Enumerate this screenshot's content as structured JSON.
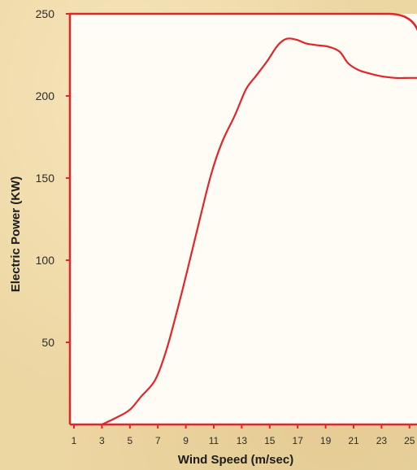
{
  "chart_data": {
    "type": "line",
    "title": "",
    "xlabel": "Wind Speed (m/sec)",
    "ylabel": "Electric Power (KW)",
    "xlim": [
      1,
      26
    ],
    "ylim": [
      0,
      250
    ],
    "x_ticks": [
      1,
      3,
      5,
      7,
      9,
      11,
      13,
      15,
      17,
      19,
      21,
      23,
      25
    ],
    "y_ticks": [
      50,
      100,
      150,
      200,
      250
    ],
    "grid": false,
    "legend": "none",
    "colors": {
      "line": "#e0262a",
      "frame": "#e0262a",
      "plot_bg": "#fffcf6"
    },
    "series": [
      {
        "x": [
          3,
          4,
          5,
          5.8,
          6.8,
          7.6,
          8.4,
          9.2,
          10,
          10.8,
          11.6,
          12.5,
          13.3,
          14,
          14.8,
          15.5,
          16,
          16.4,
          17,
          17.6,
          18.3,
          19.2,
          20,
          20.6,
          21.3,
          22,
          23,
          24,
          25,
          26
        ],
        "y": [
          0,
          4,
          9,
          17,
          27,
          45,
          70,
          97,
          125,
          152,
          172,
          188,
          204,
          212,
          221,
          230,
          234,
          235,
          234,
          232,
          231,
          230,
          227,
          220,
          216,
          214,
          212,
          211,
          211,
          211
        ]
      }
    ]
  }
}
